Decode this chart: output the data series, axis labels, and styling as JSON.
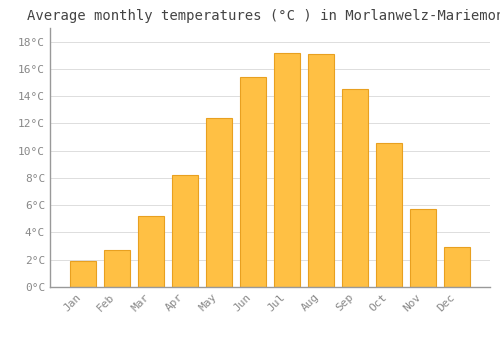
{
  "title": "Average monthly temperatures (°C ) in Morlanwelz-Mariemont",
  "months": [
    "Jan",
    "Feb",
    "Mar",
    "Apr",
    "May",
    "Jun",
    "Jul",
    "Aug",
    "Sep",
    "Oct",
    "Nov",
    "Dec"
  ],
  "values": [
    1.9,
    2.7,
    5.2,
    8.2,
    12.4,
    15.4,
    17.2,
    17.1,
    14.5,
    10.6,
    5.7,
    2.9
  ],
  "bar_color": "#FFC044",
  "bar_edge_color": "#E8A020",
  "background_color": "#FFFFFF",
  "grid_color": "#DDDDDD",
  "title_fontsize": 10,
  "tick_label_color": "#888888",
  "title_color": "#444444",
  "ylim": [
    0,
    19
  ],
  "yticks": [
    0,
    2,
    4,
    6,
    8,
    10,
    12,
    14,
    16,
    18
  ],
  "ytick_labels": [
    "0°C",
    "2°C",
    "4°C",
    "6°C",
    "8°C",
    "10°C",
    "12°C",
    "14°C",
    "16°C",
    "18°C"
  ],
  "bar_width": 0.75
}
